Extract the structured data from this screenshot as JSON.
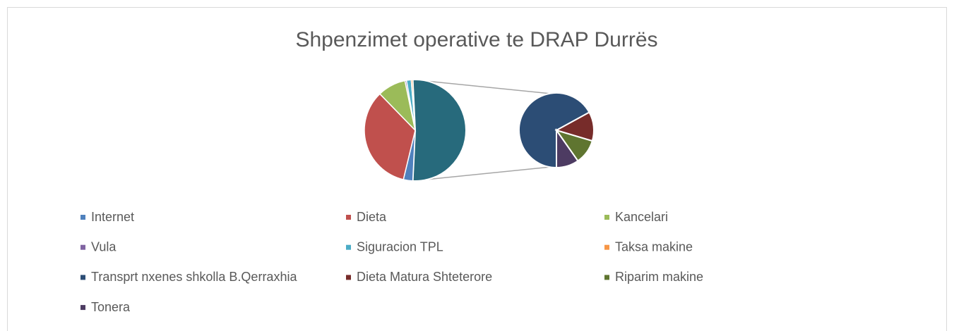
{
  "chart_data": {
    "type": "pie_of_pie",
    "title": "Shpenzimet operative te DRAP Durrës",
    "categories": [
      "Internet",
      "Dieta",
      "Kancelari",
      "Vula",
      "Siguracion TPL",
      "Taksa makine",
      "Transprt nxenes shkolla B.Qerraxhia",
      "Dieta Matura Shteterore",
      "Riparim makine",
      "Tonera"
    ],
    "values": [
      3,
      34,
      9,
      0.5,
      1.5,
      0.5,
      34.5,
      6.5,
      5.5,
      5
    ],
    "colors": [
      "#4F81BD",
      "#C0504D",
      "#9BBB59",
      "#8064A2",
      "#4BACC6",
      "#F79646",
      "#2C4D75",
      "#772C2A",
      "#5F7530",
      "#4D3B62"
    ],
    "second_plot_count": 4,
    "other_color": "#276A7C"
  }
}
